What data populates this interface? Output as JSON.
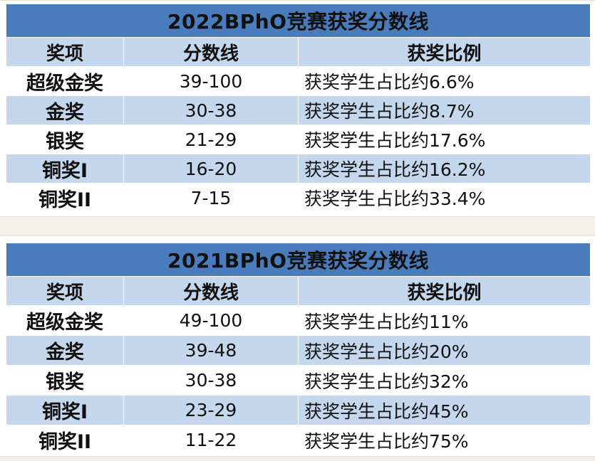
{
  "tables": [
    {
      "title": "2022BPhO竞赛获奖分数线",
      "headers": [
        "奖项",
        "分数线",
        "获奖比例"
      ],
      "rows": [
        {
          "award": "超级金奖",
          "score": "39-100",
          "ratio": "获奖学生占比约6.6%"
        },
        {
          "award": "金奖",
          "score": "30-38",
          "ratio": "获奖学生占比约8.7%"
        },
        {
          "award": "银奖",
          "score": "21-29",
          "ratio": "获奖学生占比约17.6%"
        },
        {
          "award": "铜奖I",
          "score": "16-20",
          "ratio": "获奖学生占比约16.2%"
        },
        {
          "award": "铜奖II",
          "score": "7-15",
          "ratio": "获奖学生占比约33.4%"
        }
      ]
    },
    {
      "title": "2021BPhO竞赛获奖分数线",
      "headers": [
        "奖项",
        "分数线",
        "获奖比例"
      ],
      "rows": [
        {
          "award": "超级金奖",
          "score": "49-100",
          "ratio": "获奖学生占比约11%"
        },
        {
          "award": "金奖",
          "score": "39-48",
          "ratio": "获奖学生占比约20%"
        },
        {
          "award": "银奖",
          "score": "30-38",
          "ratio": "获奖学生占比约32%"
        },
        {
          "award": "铜奖I",
          "score": "23-29",
          "ratio": "获奖学生占比约45%"
        },
        {
          "award": "铜奖II",
          "score": "11-22",
          "ratio": "获奖学生占比约75%"
        }
      ]
    }
  ],
  "colors": {
    "title_bg": "#4a7bbd",
    "band_bg": "#c5d7ec",
    "row_bg": "#ffffff"
  }
}
